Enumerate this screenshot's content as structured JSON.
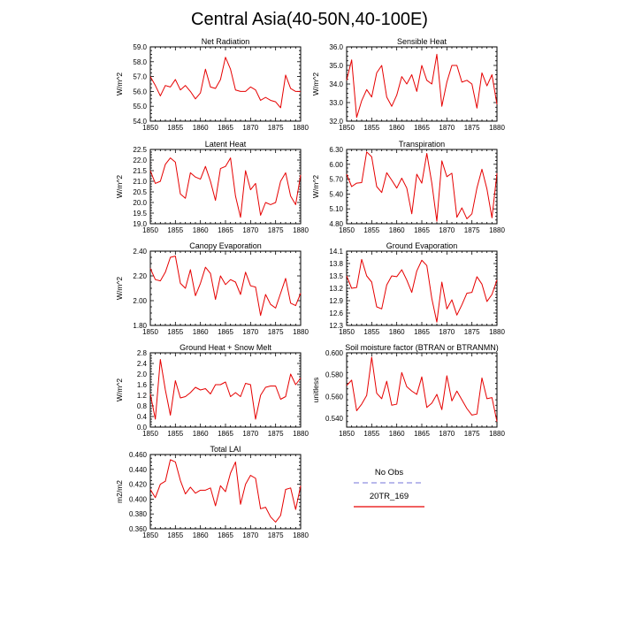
{
  "title": "Central Asia(40-50N,40-100E)",
  "legend": {
    "entries": [
      {
        "label": "No Obs",
        "color": "#8f8fe0",
        "dash": true
      },
      {
        "label": "20TR_169",
        "color": "#e60000",
        "dash": false
      }
    ]
  },
  "series_color": "#e60000",
  "chart_data": [
    {
      "type": "line",
      "title": "Net Radiation",
      "ylabel": "W/m^2",
      "xlim": [
        1850,
        1880
      ],
      "xticks": [
        1850,
        1855,
        1860,
        1865,
        1870,
        1875,
        1880
      ],
      "ylim": [
        54.0,
        59.0
      ],
      "yticks": [
        "54.0",
        "55.0",
        "56.0",
        "57.0",
        "58.0",
        "59.0"
      ],
      "x": [
        1850,
        1851,
        1852,
        1853,
        1854,
        1855,
        1856,
        1857,
        1858,
        1859,
        1860,
        1861,
        1862,
        1863,
        1864,
        1865,
        1866,
        1867,
        1868,
        1869,
        1870,
        1871,
        1872,
        1873,
        1874,
        1875,
        1876,
        1877,
        1878,
        1879,
        1880
      ],
      "series": [
        {
          "name": "20TR_169",
          "values": [
            57.0,
            56.4,
            55.7,
            56.4,
            56.3,
            56.8,
            56.1,
            56.4,
            56.0,
            55.5,
            55.9,
            57.5,
            56.3,
            56.2,
            56.8,
            58.3,
            57.5,
            56.1,
            56.0,
            56.0,
            56.3,
            56.1,
            55.4,
            55.6,
            55.4,
            55.3,
            54.9,
            57.1,
            56.2,
            56.0,
            56.0
          ]
        }
      ]
    },
    {
      "type": "line",
      "title": "Sensible Heat",
      "ylabel": "W/m^2",
      "xlim": [
        1850,
        1880
      ],
      "xticks": [
        1850,
        1855,
        1860,
        1865,
        1870,
        1875,
        1880
      ],
      "ylim": [
        32.0,
        36.0
      ],
      "yticks": [
        "32.0",
        "33.0",
        "34.0",
        "35.0",
        "36.0"
      ],
      "x": [
        1850,
        1851,
        1852,
        1853,
        1854,
        1855,
        1856,
        1857,
        1858,
        1859,
        1860,
        1861,
        1862,
        1863,
        1864,
        1865,
        1866,
        1867,
        1868,
        1869,
        1870,
        1871,
        1872,
        1873,
        1874,
        1875,
        1876,
        1877,
        1878,
        1879,
        1880
      ],
      "series": [
        {
          "name": "20TR_169",
          "values": [
            34.2,
            35.3,
            32.2,
            33.1,
            33.7,
            33.3,
            34.6,
            35.0,
            33.3,
            32.8,
            33.4,
            34.4,
            34.0,
            34.5,
            33.6,
            35.0,
            34.2,
            34.0,
            35.6,
            32.8,
            34.1,
            35.0,
            35.0,
            34.1,
            34.2,
            34.0,
            32.7,
            34.6,
            33.9,
            34.5,
            32.9
          ]
        }
      ]
    },
    {
      "type": "line",
      "title": "Latent Heat",
      "ylabel": "W/m^2",
      "xlim": [
        1850,
        1880
      ],
      "xticks": [
        1850,
        1855,
        1860,
        1865,
        1870,
        1875,
        1880
      ],
      "ylim": [
        19.0,
        22.5
      ],
      "yticks": [
        "19.0",
        "19.5",
        "20.0",
        "20.5",
        "21.0",
        "21.5",
        "22.0",
        "22.5"
      ],
      "x": [
        1850,
        1851,
        1852,
        1853,
        1854,
        1855,
        1856,
        1857,
        1858,
        1859,
        1860,
        1861,
        1862,
        1863,
        1864,
        1865,
        1866,
        1867,
        1868,
        1869,
        1870,
        1871,
        1872,
        1873,
        1874,
        1875,
        1876,
        1877,
        1878,
        1879,
        1880
      ],
      "series": [
        {
          "name": "20TR_169",
          "values": [
            21.5,
            20.9,
            21.0,
            21.8,
            22.1,
            21.9,
            20.4,
            20.2,
            21.4,
            21.2,
            21.1,
            21.7,
            21.0,
            20.1,
            21.6,
            21.7,
            22.1,
            20.3,
            19.3,
            21.5,
            20.6,
            20.9,
            19.4,
            20.0,
            19.9,
            20.0,
            21.0,
            21.4,
            20.3,
            19.9,
            21.3
          ]
        }
      ]
    },
    {
      "type": "line",
      "title": "Transpiration",
      "ylabel": "W/m^2",
      "xlim": [
        1850,
        1880
      ],
      "xticks": [
        1850,
        1855,
        1860,
        1865,
        1870,
        1875,
        1880
      ],
      "ylim": [
        4.8,
        6.3
      ],
      "yticks": [
        "4.80",
        "5.10",
        "5.40",
        "5.70",
        "6.00",
        "6.30"
      ],
      "x": [
        1850,
        1851,
        1852,
        1853,
        1854,
        1855,
        1856,
        1857,
        1858,
        1859,
        1860,
        1861,
        1862,
        1863,
        1864,
        1865,
        1866,
        1867,
        1868,
        1869,
        1870,
        1871,
        1872,
        1873,
        1874,
        1875,
        1876,
        1877,
        1878,
        1879,
        1880
      ],
      "series": [
        {
          "name": "20TR_169",
          "values": [
            5.8,
            5.55,
            5.62,
            5.63,
            6.25,
            6.15,
            5.55,
            5.43,
            5.83,
            5.68,
            5.52,
            5.72,
            5.52,
            5.0,
            5.8,
            5.62,
            6.22,
            5.62,
            4.85,
            6.07,
            5.75,
            5.82,
            4.93,
            5.12,
            4.9,
            5.0,
            5.52,
            5.9,
            5.5,
            4.92,
            5.82
          ]
        }
      ]
    },
    {
      "type": "line",
      "title": "Canopy Evaporation",
      "ylabel": "W/m^2",
      "xlim": [
        1850,
        1880
      ],
      "xticks": [
        1850,
        1855,
        1860,
        1865,
        1870,
        1875,
        1880
      ],
      "ylim": [
        1.8,
        2.4
      ],
      "yticks": [
        "1.80",
        "2.00",
        "2.20",
        "2.40"
      ],
      "x": [
        1850,
        1851,
        1852,
        1853,
        1854,
        1855,
        1856,
        1857,
        1858,
        1859,
        1860,
        1861,
        1862,
        1863,
        1864,
        1865,
        1866,
        1867,
        1868,
        1869,
        1870,
        1871,
        1872,
        1873,
        1874,
        1875,
        1876,
        1877,
        1878,
        1879,
        1880
      ],
      "series": [
        {
          "name": "20TR_169",
          "values": [
            2.26,
            2.17,
            2.16,
            2.23,
            2.35,
            2.36,
            2.14,
            2.1,
            2.25,
            2.04,
            2.14,
            2.27,
            2.22,
            2.01,
            2.2,
            2.13,
            2.17,
            2.15,
            2.05,
            2.23,
            2.12,
            2.11,
            1.88,
            2.05,
            1.97,
            1.94,
            2.06,
            2.18,
            1.98,
            1.96,
            2.06
          ]
        }
      ]
    },
    {
      "type": "line",
      "title": "Ground Evaporation",
      "ylabel": "",
      "xlim": [
        1850,
        1880
      ],
      "xticks": [
        1850,
        1855,
        1860,
        1865,
        1870,
        1875,
        1880
      ],
      "ylim": [
        12.3,
        14.1
      ],
      "yticks": [
        "12.3",
        "12.6",
        "12.9",
        "13.2",
        "13.5",
        "13.8",
        "14.1"
      ],
      "x": [
        1850,
        1851,
        1852,
        1853,
        1854,
        1855,
        1856,
        1857,
        1858,
        1859,
        1860,
        1861,
        1862,
        1863,
        1864,
        1865,
        1866,
        1867,
        1868,
        1869,
        1870,
        1871,
        1872,
        1873,
        1874,
        1875,
        1876,
        1877,
        1878,
        1879,
        1880
      ],
      "series": [
        {
          "name": "20TR_169",
          "values": [
            13.5,
            13.2,
            13.22,
            13.9,
            13.5,
            13.35,
            12.75,
            12.7,
            13.28,
            13.5,
            13.48,
            13.65,
            13.4,
            13.1,
            13.62,
            13.88,
            13.75,
            12.95,
            12.38,
            13.35,
            12.7,
            12.92,
            12.55,
            12.8,
            13.08,
            13.1,
            13.48,
            13.3,
            12.88,
            13.05,
            13.4
          ]
        }
      ]
    },
    {
      "type": "line",
      "title": "Ground Heat + Snow Melt",
      "ylabel": "W/m^2",
      "xlim": [
        1850,
        1880
      ],
      "xticks": [
        1850,
        1855,
        1860,
        1865,
        1870,
        1875,
        1880
      ],
      "ylim": [
        0.0,
        2.8
      ],
      "yticks": [
        "0.0",
        "0.4",
        "0.8",
        "1.2",
        "1.6",
        "2.0",
        "2.4",
        "2.8"
      ],
      "x": [
        1850,
        1851,
        1852,
        1853,
        1854,
        1855,
        1856,
        1857,
        1858,
        1859,
        1860,
        1861,
        1862,
        1863,
        1864,
        1865,
        1866,
        1867,
        1868,
        1869,
        1870,
        1871,
        1872,
        1873,
        1874,
        1875,
        1876,
        1877,
        1878,
        1879,
        1880
      ],
      "series": [
        {
          "name": "20TR_169",
          "values": [
            1.25,
            0.3,
            2.55,
            1.4,
            0.45,
            1.75,
            1.1,
            1.15,
            1.3,
            1.5,
            1.4,
            1.45,
            1.25,
            1.6,
            1.6,
            1.7,
            1.15,
            1.3,
            1.15,
            1.65,
            1.6,
            0.3,
            1.2,
            1.5,
            1.55,
            1.55,
            1.05,
            1.15,
            2.0,
            1.6,
            1.85
          ]
        }
      ]
    },
    {
      "type": "line",
      "title": "Soil moisture factor (BTRAN or BTRANMN)",
      "ylabel": "unitless",
      "xlim": [
        1850,
        1880
      ],
      "xticks": [
        1850,
        1855,
        1860,
        1865,
        1870,
        1875,
        1880
      ],
      "ylim": [
        0.532,
        0.6
      ],
      "yticks": [
        "0.540",
        "0.560",
        "0.580",
        "0.600"
      ],
      "x": [
        1850,
        1851,
        1852,
        1853,
        1854,
        1855,
        1856,
        1857,
        1858,
        1859,
        1860,
        1861,
        1862,
        1863,
        1864,
        1865,
        1866,
        1867,
        1868,
        1869,
        1870,
        1871,
        1872,
        1873,
        1874,
        1875,
        1876,
        1877,
        1878,
        1879,
        1880
      ],
      "series": [
        {
          "name": "20TR_169",
          "values": [
            0.57,
            0.575,
            0.547,
            0.553,
            0.561,
            0.596,
            0.563,
            0.558,
            0.574,
            0.552,
            0.553,
            0.582,
            0.569,
            0.565,
            0.562,
            0.578,
            0.55,
            0.554,
            0.562,
            0.548,
            0.579,
            0.556,
            0.565,
            0.557,
            0.549,
            0.543,
            0.544,
            0.577,
            0.558,
            0.559,
            0.537
          ]
        }
      ]
    },
    {
      "type": "line",
      "title": "Total LAI",
      "ylabel": "m2/m2",
      "xlim": [
        1850,
        1880
      ],
      "xticks": [
        1850,
        1855,
        1860,
        1865,
        1870,
        1875,
        1880
      ],
      "ylim": [
        0.36,
        0.46
      ],
      "yticks": [
        "0.360",
        "0.380",
        "0.400",
        "0.420",
        "0.440",
        "0.460"
      ],
      "x": [
        1850,
        1851,
        1852,
        1853,
        1854,
        1855,
        1856,
        1857,
        1858,
        1859,
        1860,
        1861,
        1862,
        1863,
        1864,
        1865,
        1866,
        1867,
        1868,
        1869,
        1870,
        1871,
        1872,
        1873,
        1874,
        1875,
        1876,
        1877,
        1878,
        1879,
        1880
      ],
      "series": [
        {
          "name": "20TR_169",
          "values": [
            0.413,
            0.402,
            0.42,
            0.424,
            0.453,
            0.45,
            0.425,
            0.407,
            0.416,
            0.408,
            0.412,
            0.412,
            0.415,
            0.391,
            0.418,
            0.41,
            0.435,
            0.45,
            0.393,
            0.42,
            0.432,
            0.428,
            0.387,
            0.389,
            0.376,
            0.369,
            0.378,
            0.413,
            0.415,
            0.386,
            0.418
          ]
        }
      ]
    }
  ]
}
